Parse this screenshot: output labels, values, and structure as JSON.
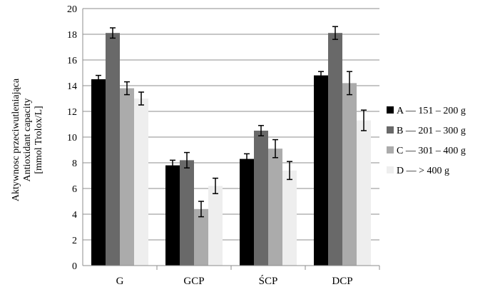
{
  "chart_data": {
    "type": "bar",
    "ylabel_lines": [
      "Aktywnosc przeciwutleniająca",
      "Antioxidant  capacity",
      "[mmol Trolox/L]"
    ],
    "categories": [
      "G",
      "GCP",
      "ŚCP",
      "DCP"
    ],
    "ylim": [
      0,
      20
    ],
    "yticks": [
      0,
      2,
      4,
      6,
      8,
      10,
      12,
      14,
      16,
      18,
      20
    ],
    "grid": true,
    "legend_position": "right",
    "series": [
      {
        "name": "A — 151 – 200 g",
        "color": "#000000",
        "values": [
          14.5,
          7.8,
          8.3,
          14.8
        ],
        "errors": [
          0.3,
          0.4,
          0.4,
          0.3
        ]
      },
      {
        "name": "B — 201 – 300 g",
        "color": "#696969",
        "values": [
          18.1,
          8.2,
          10.5,
          18.1
        ],
        "errors": [
          0.4,
          0.6,
          0.4,
          0.5
        ]
      },
      {
        "name": "C — 301 – 400 g",
        "color": "#ababab",
        "values": [
          13.8,
          4.4,
          9.1,
          14.2
        ],
        "errors": [
          0.5,
          0.6,
          0.7,
          0.9
        ]
      },
      {
        "name": "D — > 400 g",
        "color": "#eeeeee",
        "values": [
          13.0,
          6.2,
          7.4,
          11.3
        ],
        "errors": [
          0.5,
          0.6,
          0.7,
          0.8
        ]
      }
    ]
  }
}
